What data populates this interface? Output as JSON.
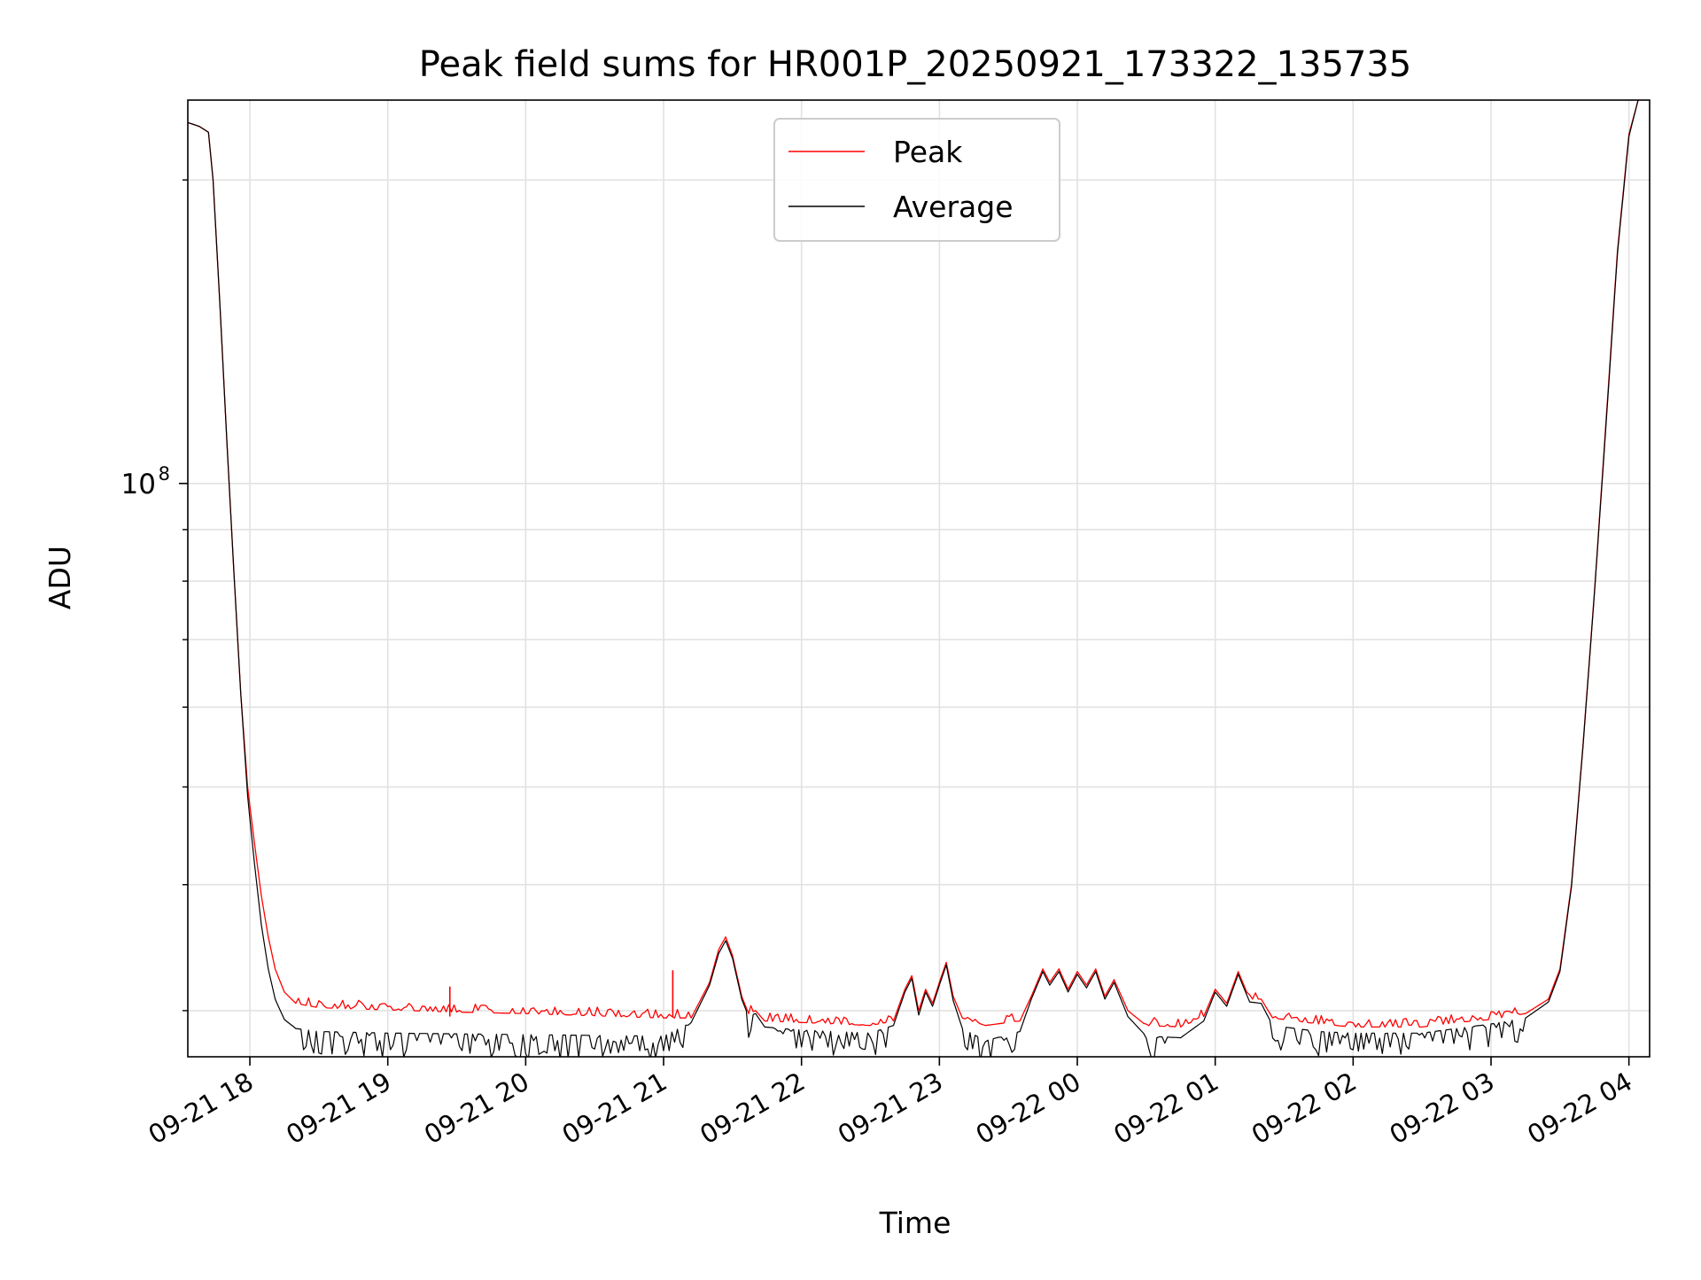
{
  "chart_data": {
    "type": "line",
    "title": "Peak field sums for HR001P_20250921_173322_135735",
    "xlabel": "Time",
    "ylabel": "ADU",
    "y_scale": "log",
    "xlim": [
      "2025-09-21 17:33",
      "2025-09-22 04:09"
    ],
    "ylim": [
      27000000,
      240000000
    ],
    "x_ticks": [
      "09-21 18",
      "09-21 19",
      "09-21 20",
      "09-21 21",
      "09-21 22",
      "09-21 23",
      "09-22 00",
      "09-22 01",
      "09-22 02",
      "09-22 03",
      "09-22 04"
    ],
    "y_major_ticks": [
      {
        "value": 100000000,
        "base": "10",
        "exponent": "8"
      }
    ],
    "y_minor_ticks": [
      30000000,
      40000000,
      50000000,
      60000000,
      70000000,
      80000000,
      90000000,
      200000000
    ],
    "grid": true,
    "legend_position": "top-center",
    "series": [
      {
        "name": "Peak",
        "color": "#ff0000",
        "points": [
          [
            "2025-09-21 17:33",
            228000000
          ],
          [
            "2025-09-21 17:38",
            226000000
          ],
          [
            "2025-09-21 17:42",
            223000000
          ],
          [
            "2025-09-21 17:44",
            200000000
          ],
          [
            "2025-09-21 17:47",
            150000000
          ],
          [
            "2025-09-21 17:50",
            110000000
          ],
          [
            "2025-09-21 17:53",
            82000000
          ],
          [
            "2025-09-21 17:56",
            62000000
          ],
          [
            "2025-09-21 17:59",
            50000000
          ],
          [
            "2025-09-21 18:02",
            44000000
          ],
          [
            "2025-09-21 18:05",
            39000000
          ],
          [
            "2025-09-21 18:08",
            35500000
          ],
          [
            "2025-09-21 18:11",
            33000000
          ],
          [
            "2025-09-21 18:15",
            31300000
          ],
          [
            "2025-09-21 18:20",
            30500000
          ],
          [
            "2025-09-21 18:30",
            30200000
          ],
          [
            "2025-09-21 19:00",
            30050000
          ],
          [
            "2025-09-21 19:30",
            29900000
          ],
          [
            "2025-09-21 20:00",
            29800000
          ],
          [
            "2025-09-21 20:30",
            29650000
          ],
          [
            "2025-09-21 21:00",
            29500000
          ],
          [
            "2025-09-21 21:12",
            29500000
          ],
          [
            "2025-09-21 21:20",
            32000000
          ],
          [
            "2025-09-21 21:24",
            34500000
          ],
          [
            "2025-09-21 21:27",
            35500000
          ],
          [
            "2025-09-21 21:30",
            34000000
          ],
          [
            "2025-09-21 21:34",
            31000000
          ],
          [
            "2025-09-21 21:37",
            29800000
          ],
          [
            "2025-09-21 21:40",
            30000000
          ],
          [
            "2025-09-21 21:44",
            29300000
          ],
          [
            "2025-09-21 22:00",
            29200000
          ],
          [
            "2025-09-21 22:15",
            29100000
          ],
          [
            "2025-09-21 22:30",
            29000000
          ],
          [
            "2025-09-21 22:40",
            29300000
          ],
          [
            "2025-09-21 22:45",
            31500000
          ],
          [
            "2025-09-21 22:48",
            32500000
          ],
          [
            "2025-09-21 22:51",
            30000000
          ],
          [
            "2025-09-21 22:54",
            31500000
          ],
          [
            "2025-09-21 22:57",
            30500000
          ],
          [
            "2025-09-21 23:00",
            32000000
          ],
          [
            "2025-09-21 23:03",
            33500000
          ],
          [
            "2025-09-21 23:06",
            31000000
          ],
          [
            "2025-09-21 23:10",
            29500000
          ],
          [
            "2025-09-21 23:20",
            29000000
          ],
          [
            "2025-09-21 23:35",
            29300000
          ],
          [
            "2025-09-21 23:40",
            31000000
          ],
          [
            "2025-09-21 23:45",
            33000000
          ],
          [
            "2025-09-21 23:48",
            32000000
          ],
          [
            "2025-09-21 23:52",
            33000000
          ],
          [
            "2025-09-21 23:56",
            31500000
          ],
          [
            "2025-09-22 00:00",
            32800000
          ],
          [
            "2025-09-22 00:04",
            31800000
          ],
          [
            "2025-09-22 00:08",
            33000000
          ],
          [
            "2025-09-22 00:12",
            31000000
          ],
          [
            "2025-09-22 00:16",
            32200000
          ],
          [
            "2025-09-22 00:22",
            30000000
          ],
          [
            "2025-09-22 00:30",
            29000000
          ],
          [
            "2025-09-22 00:45",
            28900000
          ],
          [
            "2025-09-22 00:55",
            29600000
          ],
          [
            "2025-09-22 01:00",
            31500000
          ],
          [
            "2025-09-22 01:05",
            30500000
          ],
          [
            "2025-09-22 01:10",
            32800000
          ],
          [
            "2025-09-22 01:15",
            30800000
          ],
          [
            "2025-09-22 01:20",
            30800000
          ],
          [
            "2025-09-22 01:25",
            29500000
          ],
          [
            "2025-09-22 01:45",
            29100000
          ],
          [
            "2025-09-22 02:00",
            28900000
          ],
          [
            "2025-09-22 02:30",
            28900000
          ],
          [
            "2025-09-22 02:45",
            29200000
          ],
          [
            "2025-09-22 03:00",
            29400000
          ],
          [
            "2025-09-22 03:15",
            29800000
          ],
          [
            "2025-09-22 03:25",
            30800000
          ],
          [
            "2025-09-22 03:30",
            33000000
          ],
          [
            "2025-09-22 03:35",
            40000000
          ],
          [
            "2025-09-22 03:40",
            55000000
          ],
          [
            "2025-09-22 03:45",
            78000000
          ],
          [
            "2025-09-22 03:50",
            115000000
          ],
          [
            "2025-09-22 03:55",
            170000000
          ],
          [
            "2025-09-22 04:00",
            222000000
          ],
          [
            "2025-09-22 04:04",
            240000000
          ]
        ]
      },
      {
        "name": "Average",
        "color": "#000000",
        "points": [
          [
            "2025-09-21 17:33",
            228000000
          ],
          [
            "2025-09-21 17:38",
            226000000
          ],
          [
            "2025-09-21 17:42",
            223000000
          ],
          [
            "2025-09-21 17:44",
            200000000
          ],
          [
            "2025-09-21 17:47",
            150000000
          ],
          [
            "2025-09-21 17:50",
            110000000
          ],
          [
            "2025-09-21 17:53",
            82000000
          ],
          [
            "2025-09-21 17:56",
            62000000
          ],
          [
            "2025-09-21 17:59",
            49000000
          ],
          [
            "2025-09-21 18:02",
            42000000
          ],
          [
            "2025-09-21 18:05",
            36500000
          ],
          [
            "2025-09-21 18:08",
            33000000
          ],
          [
            "2025-09-21 18:11",
            30800000
          ],
          [
            "2025-09-21 18:15",
            29400000
          ],
          [
            "2025-09-21 18:20",
            28800000
          ],
          [
            "2025-09-21 18:30",
            28600000
          ],
          [
            "2025-09-21 19:00",
            28500000
          ],
          [
            "2025-09-21 19:30",
            28450000
          ],
          [
            "2025-09-21 20:00",
            28400000
          ],
          [
            "2025-09-21 20:30",
            28350000
          ],
          [
            "2025-09-21 21:00",
            28300000
          ],
          [
            "2025-09-21 21:12",
            29200000
          ],
          [
            "2025-09-21 21:20",
            31800000
          ],
          [
            "2025-09-21 21:24",
            34200000
          ],
          [
            "2025-09-21 21:27",
            35200000
          ],
          [
            "2025-09-21 21:30",
            33800000
          ],
          [
            "2025-09-21 21:34",
            30800000
          ],
          [
            "2025-09-21 21:37",
            29600000
          ],
          [
            "2025-09-21 21:40",
            29800000
          ],
          [
            "2025-09-21 21:44",
            28900000
          ],
          [
            "2025-09-21 22:00",
            28700000
          ],
          [
            "2025-09-21 22:15",
            28600000
          ],
          [
            "2025-09-21 22:30",
            28500000
          ],
          [
            "2025-09-21 22:40",
            29000000
          ],
          [
            "2025-09-21 22:45",
            31300000
          ],
          [
            "2025-09-21 22:48",
            32300000
          ],
          [
            "2025-09-21 22:51",
            29700000
          ],
          [
            "2025-09-21 22:54",
            31300000
          ],
          [
            "2025-09-21 22:57",
            30300000
          ],
          [
            "2025-09-21 23:00",
            31800000
          ],
          [
            "2025-09-21 23:03",
            33300000
          ],
          [
            "2025-09-21 23:06",
            30700000
          ],
          [
            "2025-09-21 23:10",
            28800000
          ],
          [
            "2025-09-21 23:20",
            28000000
          ],
          [
            "2025-09-21 23:35",
            28600000
          ],
          [
            "2025-09-21 23:40",
            30800000
          ],
          [
            "2025-09-21 23:45",
            32800000
          ],
          [
            "2025-09-21 23:48",
            31800000
          ],
          [
            "2025-09-21 23:52",
            32800000
          ],
          [
            "2025-09-21 23:56",
            31300000
          ],
          [
            "2025-09-22 00:00",
            32600000
          ],
          [
            "2025-09-22 00:04",
            31600000
          ],
          [
            "2025-09-22 00:08",
            32800000
          ],
          [
            "2025-09-22 00:12",
            30800000
          ],
          [
            "2025-09-22 00:16",
            32000000
          ],
          [
            "2025-09-22 00:22",
            29600000
          ],
          [
            "2025-09-22 00:30",
            28300000
          ],
          [
            "2025-09-22 00:45",
            28200000
          ],
          [
            "2025-09-22 00:55",
            29300000
          ],
          [
            "2025-09-22 01:00",
            31300000
          ],
          [
            "2025-09-22 01:05",
            30300000
          ],
          [
            "2025-09-22 01:10",
            32600000
          ],
          [
            "2025-09-22 01:15",
            30600000
          ],
          [
            "2025-09-22 01:20",
            30500000
          ],
          [
            "2025-09-22 01:25",
            29000000
          ],
          [
            "2025-09-22 01:45",
            28600000
          ],
          [
            "2025-09-22 02:00",
            28500000
          ],
          [
            "2025-09-22 02:30",
            28500000
          ],
          [
            "2025-09-22 02:45",
            28800000
          ],
          [
            "2025-09-22 03:00",
            29100000
          ],
          [
            "2025-09-22 03:15",
            29500000
          ],
          [
            "2025-09-22 03:25",
            30600000
          ],
          [
            "2025-09-22 03:30",
            32800000
          ],
          [
            "2025-09-22 03:35",
            39800000
          ],
          [
            "2025-09-22 03:40",
            54800000
          ],
          [
            "2025-09-22 03:45",
            77800000
          ],
          [
            "2025-09-22 03:50",
            114000000
          ],
          [
            "2025-09-22 03:55",
            169000000
          ],
          [
            "2025-09-22 04:00",
            221000000
          ],
          [
            "2025-09-22 04:04",
            240000000
          ]
        ]
      }
    ],
    "annotations": [
      {
        "series": "Peak",
        "type": "spike",
        "x": "2025-09-21 19:27",
        "y": 31700000
      },
      {
        "series": "Peak",
        "type": "spike",
        "x": "2025-09-21 21:04",
        "y": 32900000
      }
    ]
  }
}
